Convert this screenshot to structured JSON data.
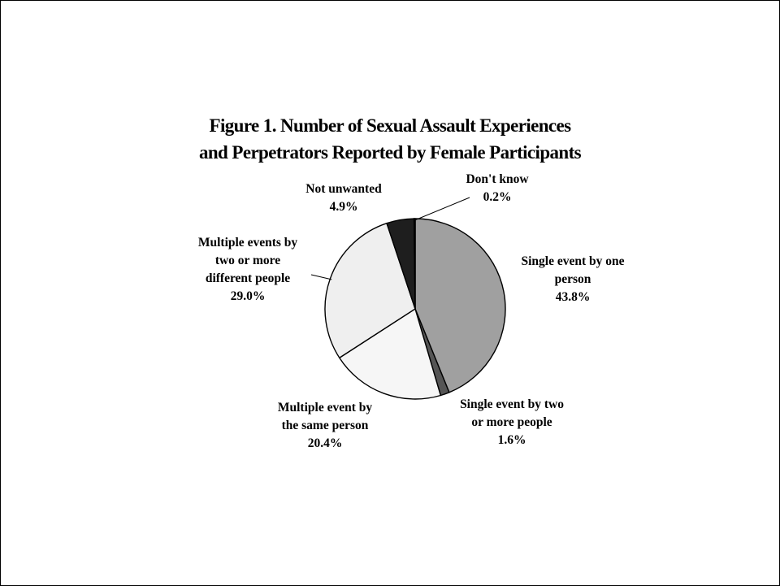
{
  "chart_data": {
    "type": "pie",
    "title": "Figure 1. Number of Sexual Assault Experiences and Perpetrators Reported by Female Participants",
    "title_lines": [
      "Figure 1. Number of Sexual Assault Experiences",
      "and Perpetrators Reported by Female Participants"
    ],
    "start_angle_deg": 0,
    "direction": "clockwise",
    "slices": [
      {
        "label": "Single event by one person",
        "label_lines": [
          "Single event by one",
          "person"
        ],
        "value": 43.8,
        "value_text": "43.8%",
        "color": "#a0a0a0"
      },
      {
        "label": "Single event by two or more people",
        "label_lines": [
          "Single event by two",
          "or more people"
        ],
        "value": 1.6,
        "value_text": "1.6%",
        "color": "#555555"
      },
      {
        "label": "Multiple event by the same person",
        "label_lines": [
          "Multiple event by",
          "the same person"
        ],
        "value": 20.4,
        "value_text": "20.4%",
        "color": "#f6f6f6"
      },
      {
        "label": "Multiple events by two or more different people",
        "label_lines": [
          "Multiple events by",
          "two or more",
          "different people"
        ],
        "value": 29.0,
        "value_text": "29.0%",
        "color": "#efefef"
      },
      {
        "label": "Not unwanted",
        "label_lines": [
          "Not unwanted"
        ],
        "value": 4.9,
        "value_text": "4.9%",
        "color": "#1e1e1e"
      },
      {
        "label": "Don't know",
        "label_lines": [
          "Don't know"
        ],
        "value": 0.2,
        "value_text": "0.2%",
        "color": "#000000"
      }
    ]
  }
}
